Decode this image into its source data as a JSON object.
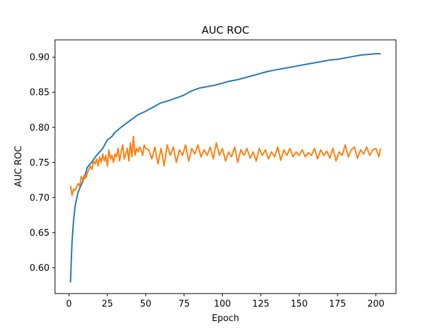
{
  "chart_data": {
    "type": "line",
    "title": "AUC ROC",
    "xlabel": "Epoch",
    "ylabel": "AUC ROC",
    "xlim": [
      -9.1,
      213.1
    ],
    "ylim": [
      0.5631,
      0.9247
    ],
    "xticks": [
      0,
      25,
      50,
      75,
      100,
      125,
      150,
      175,
      200
    ],
    "xtick_labels": [
      "0",
      "25",
      "50",
      "75",
      "100",
      "125",
      "150",
      "175",
      "200"
    ],
    "yticks": [
      0.6,
      0.65,
      0.7,
      0.75,
      0.8,
      0.85,
      0.9
    ],
    "ytick_labels": [
      "0.60",
      "0.65",
      "0.70",
      "0.75",
      "0.80",
      "0.85",
      "0.90"
    ],
    "grid": false,
    "legend": "none",
    "series": [
      {
        "color": "#1f77b4",
        "x": [
          1,
          2,
          3,
          4,
          5,
          6,
          8,
          10,
          12,
          15,
          18,
          20,
          22,
          25,
          28,
          30,
          35,
          40,
          45,
          50,
          55,
          60,
          65,
          70,
          75,
          80,
          85,
          90,
          95,
          100,
          105,
          110,
          115,
          120,
          125,
          130,
          135,
          140,
          145,
          150,
          155,
          160,
          165,
          170,
          175,
          180,
          185,
          190,
          195,
          200,
          203
        ],
        "y": [
          0.579,
          0.637,
          0.667,
          0.688,
          0.698,
          0.708,
          0.718,
          0.728,
          0.743,
          0.751,
          0.76,
          0.765,
          0.77,
          0.782,
          0.787,
          0.793,
          0.802,
          0.81,
          0.818,
          0.823,
          0.829,
          0.835,
          0.838,
          0.842,
          0.846,
          0.852,
          0.856,
          0.858,
          0.86,
          0.863,
          0.866,
          0.868,
          0.871,
          0.874,
          0.877,
          0.88,
          0.882,
          0.884,
          0.886,
          0.888,
          0.89,
          0.892,
          0.894,
          0.896,
          0.897,
          0.899,
          0.901,
          0.903,
          0.904,
          0.905,
          0.905
        ]
      },
      {
        "color": "#ff7f0e",
        "x": [
          1,
          2,
          3,
          4,
          5,
          6,
          7,
          8,
          9,
          10,
          11,
          12,
          13,
          14,
          15,
          16,
          17,
          18,
          19,
          20,
          21,
          22,
          23,
          24,
          25,
          26,
          27,
          28,
          29,
          30,
          31,
          32,
          33,
          34,
          35,
          36,
          37,
          38,
          39,
          40,
          41,
          42,
          43,
          44,
          45,
          46,
          47,
          48,
          49,
          50,
          52,
          54,
          56,
          58,
          60,
          62,
          64,
          66,
          68,
          70,
          72,
          74,
          76,
          78,
          80,
          82,
          84,
          86,
          88,
          90,
          92,
          94,
          96,
          98,
          100,
          102,
          104,
          106,
          108,
          110,
          112,
          114,
          116,
          118,
          120,
          122,
          124,
          126,
          128,
          130,
          132,
          134,
          136,
          138,
          140,
          142,
          144,
          146,
          148,
          150,
          152,
          154,
          156,
          158,
          160,
          162,
          164,
          166,
          168,
          170,
          172,
          174,
          176,
          178,
          180,
          182,
          184,
          186,
          188,
          190,
          192,
          194,
          196,
          198,
          200,
          202,
          203
        ],
        "y": [
          0.717,
          0.703,
          0.712,
          0.71,
          0.715,
          0.72,
          0.716,
          0.73,
          0.725,
          0.732,
          0.728,
          0.735,
          0.74,
          0.745,
          0.74,
          0.752,
          0.748,
          0.755,
          0.745,
          0.758,
          0.75,
          0.762,
          0.752,
          0.76,
          0.745,
          0.768,
          0.755,
          0.76,
          0.75,
          0.762,
          0.758,
          0.77,
          0.752,
          0.765,
          0.775,
          0.755,
          0.762,
          0.77,
          0.752,
          0.778,
          0.758,
          0.787,
          0.76,
          0.77,
          0.765,
          0.772,
          0.768,
          0.76,
          0.775,
          0.77,
          0.768,
          0.755,
          0.772,
          0.748,
          0.77,
          0.745,
          0.775,
          0.76,
          0.772,
          0.75,
          0.768,
          0.76,
          0.775,
          0.752,
          0.77,
          0.762,
          0.775,
          0.758,
          0.768,
          0.76,
          0.772,
          0.755,
          0.778,
          0.76,
          0.77,
          0.752,
          0.765,
          0.758,
          0.772,
          0.75,
          0.768,
          0.76,
          0.77,
          0.756,
          0.765,
          0.752,
          0.77,
          0.76,
          0.768,
          0.755,
          0.765,
          0.758,
          0.772,
          0.753,
          0.768,
          0.76,
          0.77,
          0.758,
          0.765,
          0.76,
          0.768,
          0.758,
          0.764,
          0.76,
          0.77,
          0.755,
          0.768,
          0.76,
          0.766,
          0.756,
          0.77,
          0.752,
          0.765,
          0.76,
          0.775,
          0.758,
          0.768,
          0.772,
          0.756,
          0.768,
          0.762,
          0.772,
          0.76,
          0.768,
          0.77,
          0.758,
          0.77
        ]
      }
    ]
  }
}
